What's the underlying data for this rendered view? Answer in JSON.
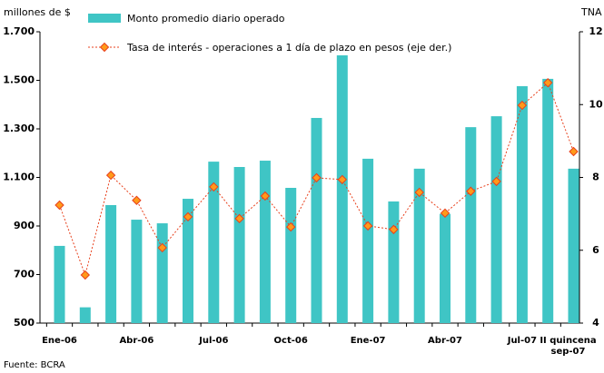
{
  "chart_data": {
    "type": "bar_line",
    "y_label": "millones de $",
    "y2_label": "TNA",
    "source": "Fuente: BCRA",
    "categories": [
      "Ene-06",
      null,
      null,
      "Abr-06",
      null,
      null,
      "Jul-06",
      null,
      null,
      "Oct-06",
      null,
      null,
      "Ene-07",
      null,
      null,
      "Abr-07",
      null,
      null,
      "Jul-07",
      null,
      "II quincena sep-07"
    ],
    "series": [
      {
        "name": "Monto promedio diario operado",
        "color": "#3fc5c5",
        "type": "bar",
        "values": [
          818,
          565,
          986,
          926,
          911,
          1012,
          1165,
          1143,
          1169,
          1057,
          1345,
          1603,
          1177,
          1001,
          1136,
          950,
          1307,
          1352,
          1476,
          1506,
          1136
        ]
      },
      {
        "name": "Tasa de interés - operaciones a 1 día de plazo en pesos (eje der.)",
        "color": "#e8401c",
        "marker_color": "#ff9a1a",
        "type": "line",
        "axis": "y2",
        "values": [
          7.24,
          5.32,
          8.06,
          7.37,
          6.07,
          6.92,
          7.74,
          6.87,
          7.49,
          6.64,
          7.99,
          7.94,
          6.67,
          6.57,
          7.59,
          7.02,
          7.62,
          7.89,
          9.98,
          10.6,
          8.71
        ]
      }
    ],
    "ylim": [
      500,
      1700
    ],
    "yticks": [
      500,
      700,
      900,
      {
        "value": 1100,
        "label": "1.100"
      },
      {
        "value": 1300,
        "label": "1.300"
      },
      {
        "value": 1500,
        "label": "1.500"
      },
      {
        "value": 1700,
        "label": "1.700"
      }
    ],
    "y2lim": [
      4,
      12
    ],
    "y2ticks": [
      4,
      6,
      8,
      10,
      12
    ]
  }
}
